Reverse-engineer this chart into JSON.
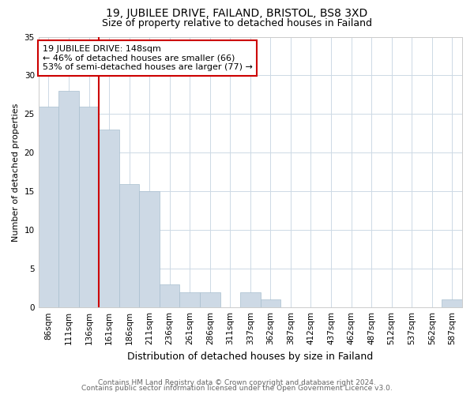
{
  "title1": "19, JUBILEE DRIVE, FAILAND, BRISTOL, BS8 3XD",
  "title2": "Size of property relative to detached houses in Failand",
  "xlabel": "Distribution of detached houses by size in Failand",
  "ylabel": "Number of detached properties",
  "bar_labels": [
    "86sqm",
    "111sqm",
    "136sqm",
    "161sqm",
    "186sqm",
    "211sqm",
    "236sqm",
    "261sqm",
    "286sqm",
    "311sqm",
    "337sqm",
    "362sqm",
    "387sqm",
    "412sqm",
    "437sqm",
    "462sqm",
    "487sqm",
    "512sqm",
    "537sqm",
    "562sqm",
    "587sqm"
  ],
  "bar_values": [
    26,
    28,
    26,
    23,
    16,
    15,
    3,
    2,
    2,
    0,
    2,
    1,
    0,
    0,
    0,
    0,
    0,
    0,
    0,
    0,
    1
  ],
  "bar_color": "#cdd9e5",
  "bar_edge_color": "#a8bfcf",
  "red_line_x": 2.5,
  "annotation_text": "19 JUBILEE DRIVE: 148sqm\n← 46% of detached houses are smaller (66)\n53% of semi-detached houses are larger (77) →",
  "annotation_box_color": "#ffffff",
  "annotation_box_edge": "#cc0000",
  "red_line_color": "#cc0000",
  "ylim": [
    0,
    35
  ],
  "yticks": [
    0,
    5,
    10,
    15,
    20,
    25,
    30,
    35
  ],
  "footer1": "Contains HM Land Registry data © Crown copyright and database right 2024.",
  "footer2": "Contains public sector information licensed under the Open Government Licence v3.0.",
  "background_color": "#ffffff",
  "grid_color": "#cdd9e5",
  "title1_fontsize": 10,
  "title2_fontsize": 9,
  "xlabel_fontsize": 9,
  "ylabel_fontsize": 8,
  "tick_fontsize": 7.5,
  "annotation_fontsize": 8,
  "footer_fontsize": 6.5
}
